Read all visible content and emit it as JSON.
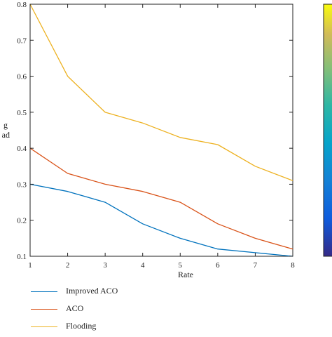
{
  "chart_data": {
    "type": "line",
    "x": [
      1,
      2,
      3,
      4,
      5,
      6,
      7,
      8
    ],
    "xlabel": "Rate",
    "ylabel_visible_fragment": [
      "g",
      "ad"
    ],
    "xlim": [
      1,
      8
    ],
    "ylim": [
      0.1,
      0.8
    ],
    "xticks": [
      "1",
      "2",
      "3",
      "4",
      "5",
      "6",
      "7",
      "8"
    ],
    "yticks": [
      "0.1",
      "0.2",
      "0.3",
      "0.4",
      "0.5",
      "0.6",
      "0.7",
      "0.8"
    ],
    "grid": false,
    "legend_position": "bottom",
    "series": [
      {
        "name": "Improved ACO",
        "color": "#0072BD",
        "values": [
          0.3,
          0.28,
          0.25,
          0.19,
          0.15,
          0.12,
          0.11,
          0.1
        ]
      },
      {
        "name": "ACO",
        "color": "#D95319",
        "values": [
          0.4,
          0.33,
          0.3,
          0.28,
          0.25,
          0.19,
          0.15,
          0.12
        ]
      },
      {
        "name": "Flooding",
        "color": "#EDB120",
        "values": [
          0.8,
          0.6,
          0.5,
          0.47,
          0.43,
          0.41,
          0.35,
          0.31
        ]
      }
    ],
    "colorbar": {
      "colormap": "parula",
      "ticks": []
    }
  }
}
